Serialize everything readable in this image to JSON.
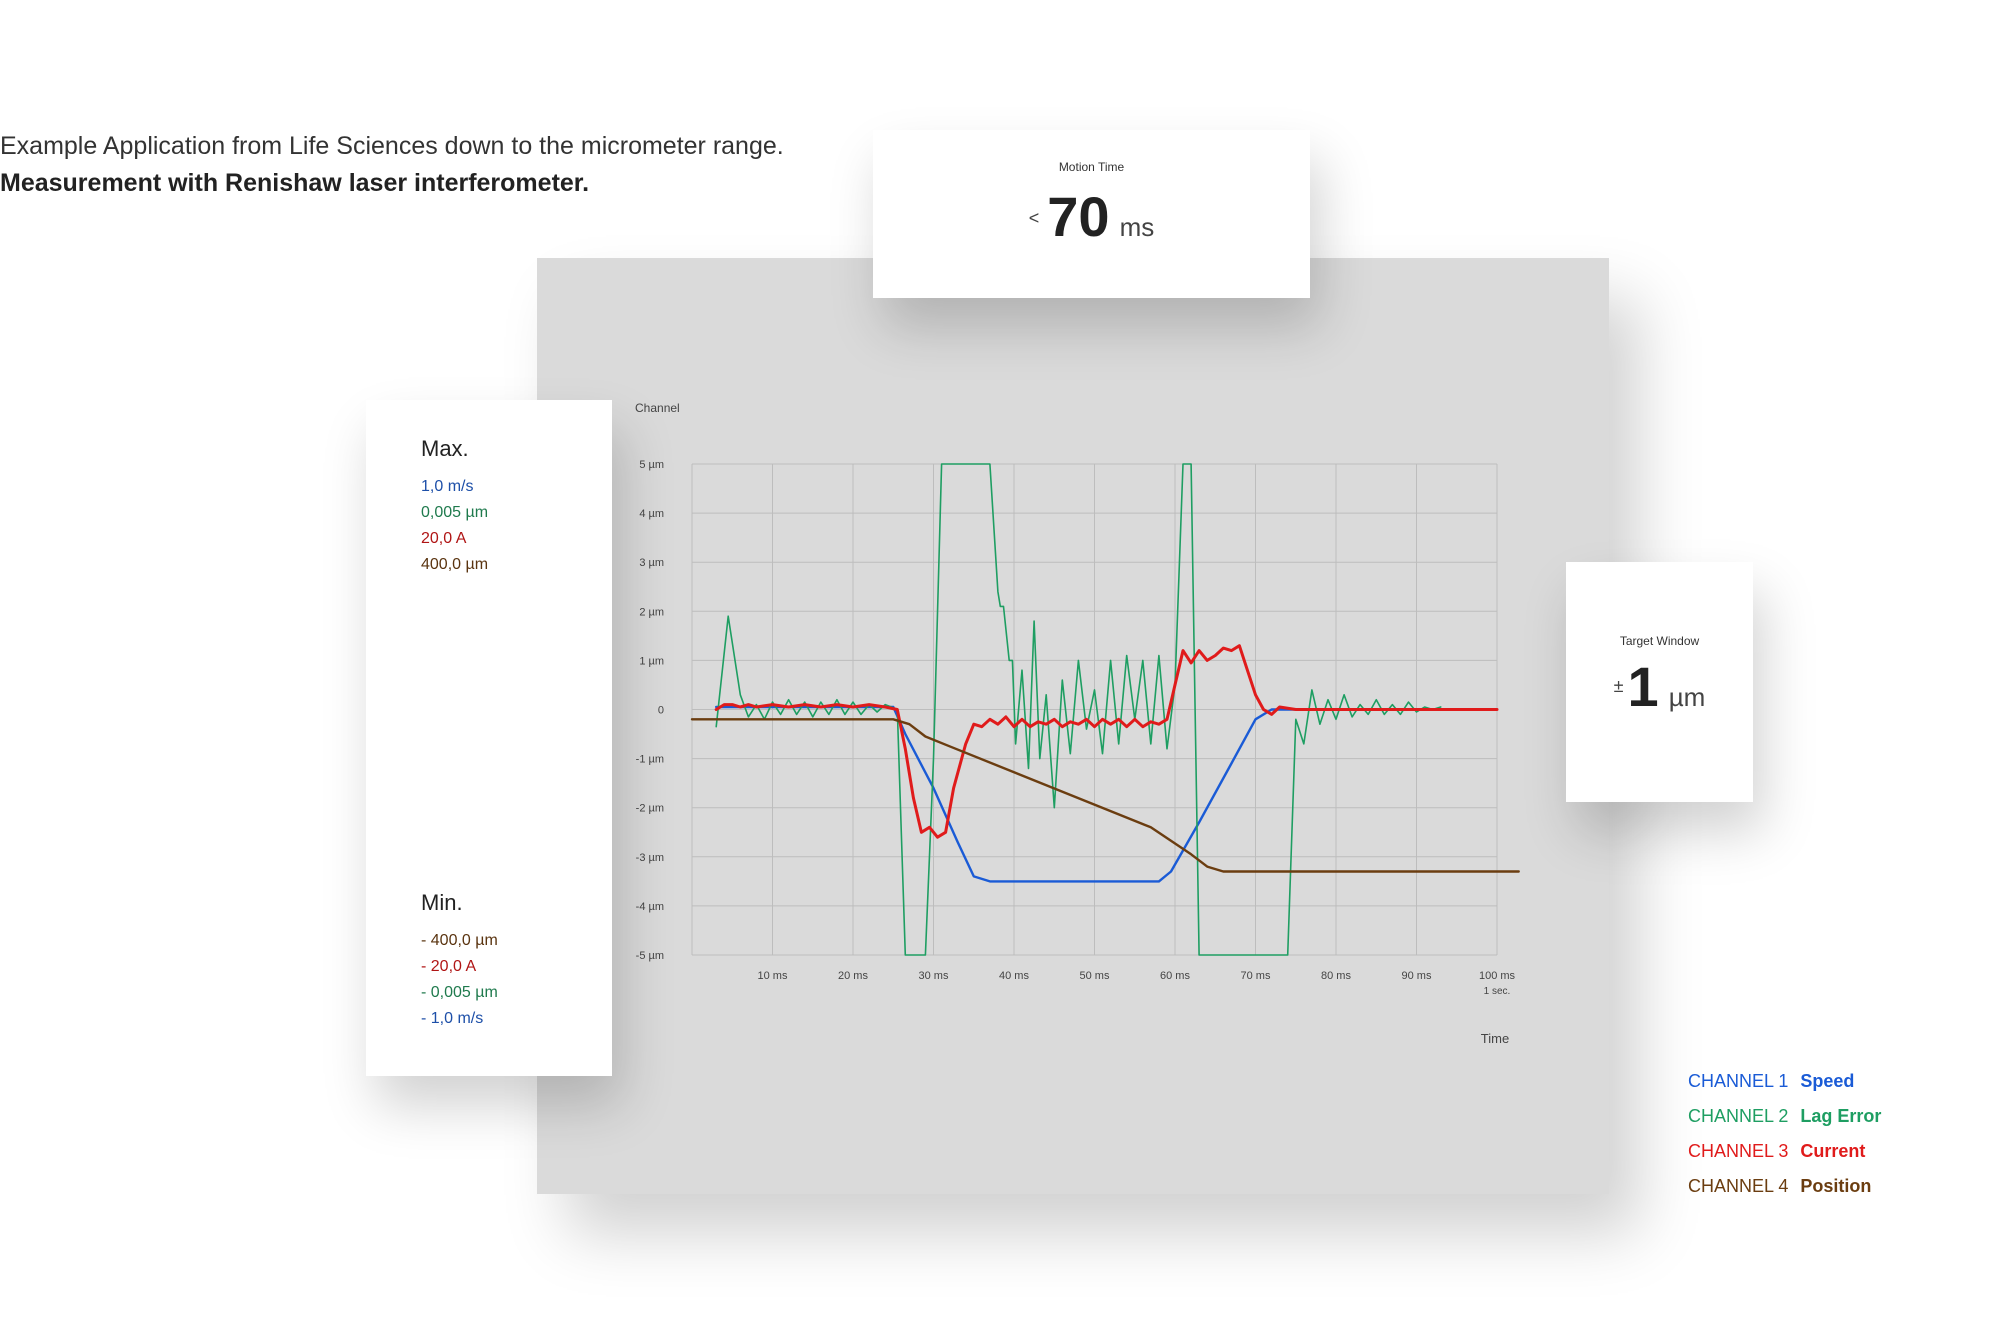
{
  "intro": {
    "line1": "Example Application from Life Sciences down to the micrometer range.",
    "line2": "Measurement with Renishaw laser interferometer."
  },
  "motion_time": {
    "label": "Motion Time",
    "prefix": "<",
    "value": "70",
    "unit": "ms"
  },
  "target_window": {
    "label": "Target Window",
    "prefix": "±",
    "value": "1",
    "unit": "µm"
  },
  "max_panel": {
    "title": "Max.",
    "values": [
      {
        "text": "1,0 m/s",
        "color": "#1d4fa8"
      },
      {
        "text": "0,005 µm",
        "color": "#1f7a4d"
      },
      {
        "text": "20,0 A",
        "color": "#b01515"
      },
      {
        "text": "400,0 µm",
        "color": "#5a3410"
      }
    ]
  },
  "min_panel": {
    "title": "Min.",
    "values": [
      {
        "text": "- 400,0 µm",
        "color": "#5a3410"
      },
      {
        "text": "- 20,0 A",
        "color": "#b01515"
      },
      {
        "text": "- 0,005 µm",
        "color": "#1f7a4d"
      },
      {
        "text": "- 1,0 m/s",
        "color": "#1d4fa8"
      }
    ]
  },
  "legend": [
    {
      "channel": "CHANNEL 1",
      "name": "Speed",
      "color": "#1a5bd6"
    },
    {
      "channel": "CHANNEL 2",
      "name": "Lag Error",
      "color": "#1e9e62"
    },
    {
      "channel": "CHANNEL 3",
      "name": "Current",
      "color": "#e01b1b"
    },
    {
      "channel": "CHANNEL 4",
      "name": "Position",
      "color": "#6b3d10"
    }
  ],
  "chart_data": {
    "type": "line",
    "ylabel": "Channel",
    "xlabel": "Time",
    "xlim": [
      0,
      100
    ],
    "ylim": [
      -5,
      5
    ],
    "x_ticks": [
      {
        "v": 10,
        "label": "10 ms"
      },
      {
        "v": 20,
        "label": "20 ms"
      },
      {
        "v": 30,
        "label": "30 ms"
      },
      {
        "v": 40,
        "label": "40 ms"
      },
      {
        "v": 50,
        "label": "50 ms"
      },
      {
        "v": 60,
        "label": "60 ms"
      },
      {
        "v": 70,
        "label": "70 ms"
      },
      {
        "v": 80,
        "label": "80 ms"
      },
      {
        "v": 90,
        "label": "90 ms"
      },
      {
        "v": 100,
        "label": "100 ms",
        "sub": "1 sec."
      }
    ],
    "y_ticks": [
      {
        "v": 5,
        "label": "5 µm"
      },
      {
        "v": 4,
        "label": "4 µm"
      },
      {
        "v": 3,
        "label": "3 µm"
      },
      {
        "v": 2,
        "label": "2 µm"
      },
      {
        "v": 1,
        "label": "1 µm"
      },
      {
        "v": 0,
        "label": "0"
      },
      {
        "v": -1,
        "label": "-1 µm"
      },
      {
        "v": -2,
        "label": "-2 µm"
      },
      {
        "v": -3,
        "label": "-3 µm"
      },
      {
        "v": -4,
        "label": "-4 µm"
      },
      {
        "v": -5,
        "label": "-5 µm"
      }
    ],
    "grid": true,
    "series": [
      {
        "name": "Speed",
        "color": "#1a5bd6",
        "points": [
          [
            3,
            0.05
          ],
          [
            25,
            0.05
          ],
          [
            26.5,
            -0.5
          ],
          [
            30,
            -1.6
          ],
          [
            33,
            -2.7
          ],
          [
            35,
            -3.4
          ],
          [
            37,
            -3.5
          ],
          [
            58,
            -3.5
          ],
          [
            59.5,
            -3.3
          ],
          [
            63,
            -2.3
          ],
          [
            67,
            -1.1
          ],
          [
            70,
            -0.2
          ],
          [
            72,
            0.0
          ],
          [
            100,
            0.0
          ]
        ]
      },
      {
        "name": "Lag Error",
        "color": "#1e9e62",
        "points": [
          [
            3,
            -0.35
          ],
          [
            4.5,
            1.9
          ],
          [
            6,
            0.3
          ],
          [
            7,
            -0.15
          ],
          [
            8,
            0.1
          ],
          [
            9,
            -0.2
          ],
          [
            10,
            0.15
          ],
          [
            11,
            -0.1
          ],
          [
            12,
            0.2
          ],
          [
            13,
            -0.1
          ],
          [
            14,
            0.15
          ],
          [
            15,
            -0.15
          ],
          [
            16,
            0.15
          ],
          [
            17,
            -0.1
          ],
          [
            18,
            0.2
          ],
          [
            19,
            -0.1
          ],
          [
            20,
            0.15
          ],
          [
            21,
            -0.1
          ],
          [
            22,
            0.1
          ],
          [
            23,
            -0.05
          ],
          [
            24,
            0.1
          ],
          [
            25.5,
            0.0
          ],
          [
            26.5,
            -5
          ],
          [
            29,
            -5
          ],
          [
            30,
            -1
          ],
          [
            31,
            5
          ],
          [
            37,
            5
          ],
          [
            38,
            2.4
          ],
          [
            38.3,
            2.1
          ],
          [
            38.7,
            2.1
          ],
          [
            39.4,
            1.0
          ],
          [
            39.8,
            1.0
          ],
          [
            40.2,
            -0.7
          ],
          [
            41,
            0.8
          ],
          [
            41.8,
            -1.2
          ],
          [
            42.5,
            1.8
          ],
          [
            43.2,
            -1.0
          ],
          [
            44,
            0.3
          ],
          [
            45,
            -2.0
          ],
          [
            46,
            0.6
          ],
          [
            47,
            -0.9
          ],
          [
            48,
            1.0
          ],
          [
            49,
            -0.4
          ],
          [
            50,
            0.4
          ],
          [
            51,
            -0.9
          ],
          [
            52,
            1.0
          ],
          [
            53,
            -0.7
          ],
          [
            54,
            1.1
          ],
          [
            55,
            -0.2
          ],
          [
            56,
            1.0
          ],
          [
            57,
            -0.7
          ],
          [
            58,
            1.1
          ],
          [
            59,
            -0.8
          ],
          [
            60,
            0.5
          ],
          [
            61,
            5
          ],
          [
            62,
            5
          ],
          [
            62.5,
            0
          ],
          [
            63,
            -5
          ],
          [
            74,
            -5
          ],
          [
            75,
            -0.2
          ],
          [
            76,
            -0.7
          ],
          [
            77,
            0.4
          ],
          [
            78,
            -0.3
          ],
          [
            79,
            0.2
          ],
          [
            80,
            -0.2
          ],
          [
            81,
            0.3
          ],
          [
            82,
            -0.15
          ],
          [
            83,
            0.1
          ],
          [
            84,
            -0.1
          ],
          [
            85,
            0.2
          ],
          [
            86,
            -0.1
          ],
          [
            87,
            0.1
          ],
          [
            88,
            -0.1
          ],
          [
            89,
            0.15
          ],
          [
            90,
            -0.05
          ],
          [
            91,
            0.05
          ],
          [
            92,
            0.0
          ],
          [
            93,
            0.05
          ]
        ]
      },
      {
        "name": "Current",
        "color": "#e01b1b",
        "points": [
          [
            3,
            0.0
          ],
          [
            4,
            0.1
          ],
          [
            5,
            0.1
          ],
          [
            6,
            0.05
          ],
          [
            7,
            0.1
          ],
          [
            8,
            0.05
          ],
          [
            10,
            0.1
          ],
          [
            12,
            0.05
          ],
          [
            14,
            0.1
          ],
          [
            16,
            0.05
          ],
          [
            18,
            0.1
          ],
          [
            20,
            0.05
          ],
          [
            22,
            0.1
          ],
          [
            24,
            0.05
          ],
          [
            25.5,
            0.0
          ],
          [
            26.5,
            -0.8
          ],
          [
            27.5,
            -1.8
          ],
          [
            28.5,
            -2.5
          ],
          [
            29.5,
            -2.4
          ],
          [
            30.5,
            -2.6
          ],
          [
            31.5,
            -2.5
          ],
          [
            32.5,
            -1.6
          ],
          [
            34,
            -0.7
          ],
          [
            35,
            -0.3
          ],
          [
            36,
            -0.35
          ],
          [
            37,
            -0.2
          ],
          [
            38,
            -0.3
          ],
          [
            39,
            -0.15
          ],
          [
            40,
            -0.35
          ],
          [
            41,
            -0.2
          ],
          [
            42,
            -0.35
          ],
          [
            43,
            -0.25
          ],
          [
            44,
            -0.3
          ],
          [
            45,
            -0.2
          ],
          [
            46,
            -0.35
          ],
          [
            47,
            -0.25
          ],
          [
            48,
            -0.3
          ],
          [
            49,
            -0.2
          ],
          [
            50,
            -0.35
          ],
          [
            51,
            -0.2
          ],
          [
            52,
            -0.3
          ],
          [
            53,
            -0.2
          ],
          [
            54,
            -0.35
          ],
          [
            55,
            -0.2
          ],
          [
            56,
            -0.35
          ],
          [
            57,
            -0.25
          ],
          [
            58,
            -0.3
          ],
          [
            59,
            -0.2
          ],
          [
            60,
            0.5
          ],
          [
            61,
            1.2
          ],
          [
            62,
            0.95
          ],
          [
            63,
            1.2
          ],
          [
            64,
            1.0
          ],
          [
            65,
            1.1
          ],
          [
            66,
            1.25
          ],
          [
            67,
            1.2
          ],
          [
            68,
            1.3
          ],
          [
            69,
            0.8
          ],
          [
            70,
            0.3
          ],
          [
            71,
            0.0
          ],
          [
            72,
            -0.1
          ],
          [
            73,
            0.05
          ],
          [
            75,
            0.0
          ],
          [
            100,
            0.0
          ]
        ]
      },
      {
        "name": "Position",
        "color": "#6b3d10",
        "points": [
          [
            0,
            -0.2
          ],
          [
            25,
            -0.2
          ],
          [
            27,
            -0.3
          ],
          [
            29,
            -0.55
          ],
          [
            32,
            -0.75
          ],
          [
            57,
            -2.4
          ],
          [
            62,
            -2.95
          ],
          [
            64,
            -3.2
          ],
          [
            66,
            -3.3
          ],
          [
            102.7,
            -3.3
          ]
        ]
      }
    ]
  }
}
